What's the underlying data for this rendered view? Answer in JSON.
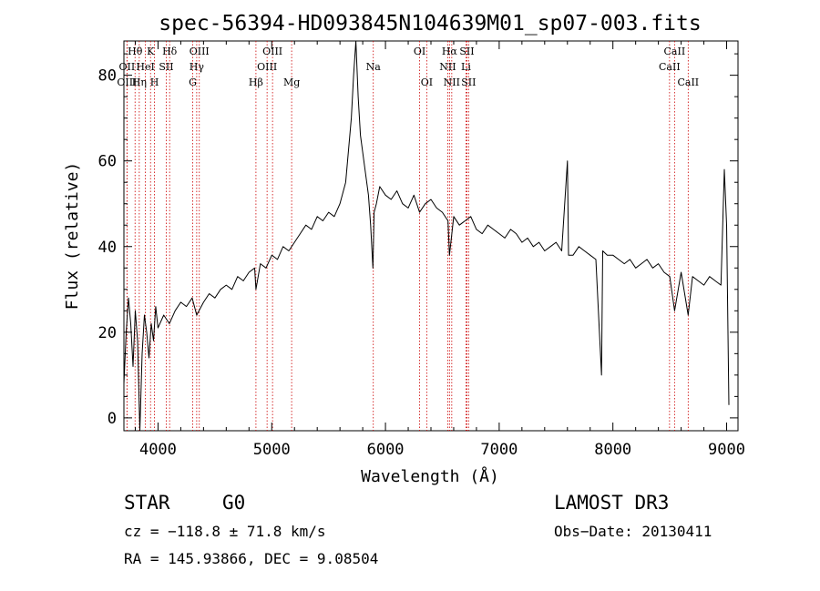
{
  "chart_data": {
    "type": "line",
    "title": "spec-56394-HD093845N104639M01_sp07-003.fits",
    "xlabel": "Wavelength (Å)",
    "ylabel": "Flux (relative)",
    "xlim": [
      3700,
      9100
    ],
    "ylim": [
      -3,
      88
    ],
    "x_ticks": [
      4000,
      5000,
      6000,
      7000,
      8000,
      9000
    ],
    "y_ticks": [
      0,
      20,
      40,
      60,
      80
    ],
    "grid": false,
    "series": [
      {
        "name": "spectrum",
        "x": [
          3700,
          3720,
          3740,
          3760,
          3780,
          3800,
          3820,
          3840,
          3860,
          3880,
          3900,
          3920,
          3940,
          3960,
          3980,
          4000,
          4050,
          4100,
          4150,
          4200,
          4250,
          4300,
          4340,
          4400,
          4450,
          4500,
          4550,
          4600,
          4650,
          4700,
          4750,
          4800,
          4850,
          4861,
          4900,
          4950,
          5000,
          5050,
          5100,
          5150,
          5200,
          5250,
          5300,
          5350,
          5400,
          5450,
          5500,
          5550,
          5600,
          5650,
          5700,
          5720,
          5740,
          5760,
          5780,
          5800,
          5820,
          5850,
          5870,
          5890,
          5900,
          5920,
          5950,
          6000,
          6050,
          6100,
          6150,
          6200,
          6250,
          6300,
          6350,
          6400,
          6450,
          6500,
          6550,
          6563,
          6600,
          6650,
          6700,
          6750,
          6800,
          6850,
          6900,
          6950,
          7000,
          7050,
          7100,
          7150,
          7200,
          7250,
          7300,
          7350,
          7400,
          7450,
          7500,
          7550,
          7600,
          7610,
          7650,
          7700,
          7750,
          7800,
          7850,
          7900,
          7910,
          7950,
          8000,
          8050,
          8100,
          8150,
          8200,
          8250,
          8300,
          8350,
          8400,
          8450,
          8500,
          8542,
          8600,
          8662,
          8700,
          8750,
          8800,
          8850,
          8900,
          8950,
          8980,
          9000,
          9020
        ],
        "y": [
          8,
          20,
          28,
          22,
          12,
          25,
          18,
          -3,
          15,
          24,
          20,
          14,
          22,
          18,
          26,
          21,
          24,
          22,
          25,
          27,
          26,
          28,
          24,
          27,
          29,
          28,
          30,
          31,
          30,
          33,
          32,
          34,
          35,
          30,
          36,
          35,
          38,
          37,
          40,
          39,
          41,
          43,
          45,
          44,
          47,
          46,
          48,
          47,
          50,
          55,
          70,
          80,
          88,
          75,
          66,
          62,
          58,
          52,
          45,
          35,
          48,
          50,
          54,
          52,
          51,
          53,
          50,
          49,
          52,
          48,
          50,
          51,
          49,
          48,
          46,
          38,
          47,
          45,
          46,
          47,
          44,
          43,
          45,
          44,
          43,
          42,
          44,
          43,
          41,
          42,
          40,
          41,
          39,
          40,
          41,
          39,
          60,
          38,
          38,
          40,
          39,
          38,
          37,
          10,
          39,
          38,
          38,
          37,
          36,
          37,
          35,
          36,
          37,
          35,
          36,
          34,
          33,
          25,
          34,
          24,
          33,
          32,
          31,
          33,
          32,
          31,
          58,
          45,
          3
        ]
      }
    ],
    "lines": [
      {
        "name": "OII",
        "x": 3727,
        "row": 2
      },
      {
        "name": "OIII",
        "x": 3727,
        "row": 3
      },
      {
        "name": "Hθ",
        "x": 3798,
        "row": 1
      },
      {
        "name": "Hη",
        "x": 3835,
        "row": 3
      },
      {
        "name": "K",
        "x": 3934,
        "row": 1
      },
      {
        "name": "HeI",
        "x": 3889,
        "row": 2
      },
      {
        "name": "H",
        "x": 3969,
        "row": 3
      },
      {
        "name": "SII",
        "x": 4072,
        "row": 2
      },
      {
        "name": "Hδ",
        "x": 4102,
        "row": 1
      },
      {
        "name": "OIII",
        "x": 4363,
        "row": 1
      },
      {
        "name": "Hγ",
        "x": 4340,
        "row": 2
      },
      {
        "name": "G",
        "x": 4305,
        "row": 3
      },
      {
        "name": "Hβ",
        "x": 4861,
        "row": 3
      },
      {
        "name": "OIII",
        "x": 5007,
        "row": 1
      },
      {
        "name": "OIII",
        "x": 4959,
        "row": 2
      },
      {
        "name": "Mg",
        "x": 5175,
        "row": 3
      },
      {
        "name": "Na",
        "x": 5893,
        "row": 2
      },
      {
        "name": "OI",
        "x": 6300,
        "row": 1
      },
      {
        "name": "OI",
        "x": 6363,
        "row": 3
      },
      {
        "name": "Hα",
        "x": 6563,
        "row": 1
      },
      {
        "name": "NII",
        "x": 6548,
        "row": 2
      },
      {
        "name": "NII",
        "x": 6583,
        "row": 3
      },
      {
        "name": "SII",
        "x": 6716,
        "row": 1
      },
      {
        "name": "Li",
        "x": 6708,
        "row": 2
      },
      {
        "name": "SII",
        "x": 6731,
        "row": 3
      },
      {
        "name": "CaII",
        "x": 8498,
        "row": 2
      },
      {
        "name": "CaII",
        "x": 8542,
        "row": 1
      },
      {
        "name": "CaII",
        "x": 8662,
        "row": 3
      }
    ]
  },
  "info": {
    "object_class": "STAR",
    "subclass": "G0",
    "survey": "LAMOST DR3",
    "redshift": "cz = −118.8 ± 71.8 km/s",
    "obs_date": "Obs−Date: 20130411",
    "coords": "RA = 145.93866, DEC =    9.08504"
  },
  "colors": {
    "spectrum": "#000000",
    "line_marker": "#cc0000",
    "axis": "#000000"
  }
}
